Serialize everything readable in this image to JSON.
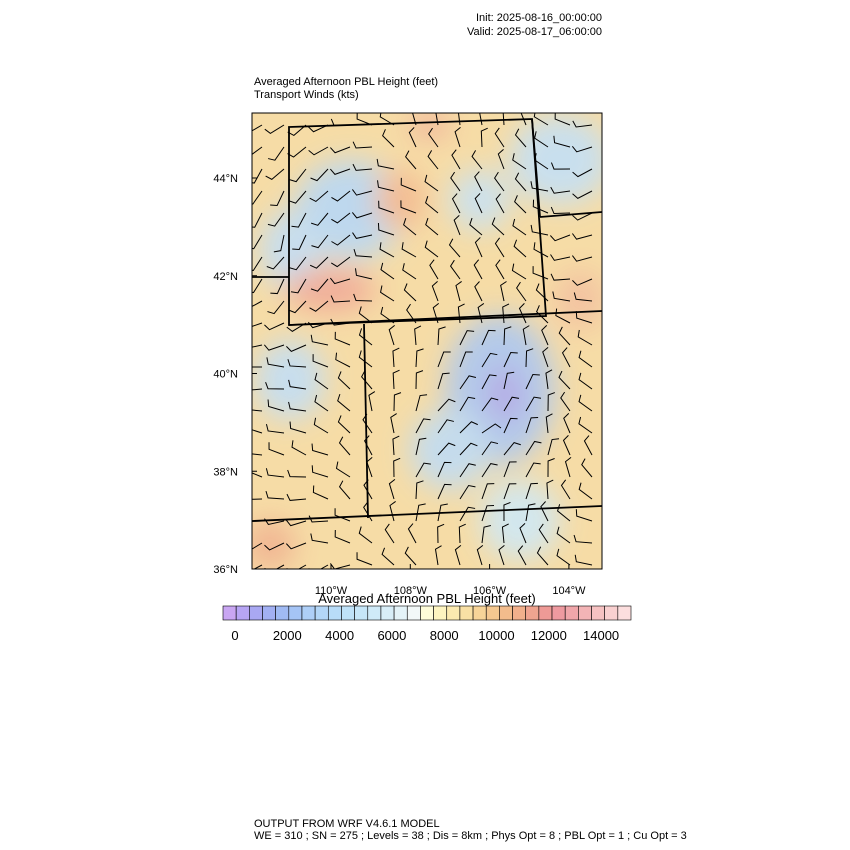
{
  "header": {
    "init": "Init: 2025-08-16_00:00:00",
    "valid": "Valid: 2025-08-17_06:00:00"
  },
  "map": {
    "title": "Averaged Afternoon PBL Height   (feet)",
    "subtitle": "Transport Winds   (kts)",
    "lat_labels": [
      "44°N",
      "42°N",
      "40°N",
      "38°N",
      "36°N"
    ],
    "lon_labels": [
      "110°W",
      "108°W",
      "106°W",
      "104°W"
    ]
  },
  "colorbar": {
    "title": "Averaged Afternoon PBL Height  (feet)",
    "labels": [
      "0",
      "2000",
      "4000",
      "6000",
      "8000",
      "10000",
      "12000",
      "14000"
    ],
    "colors": [
      "#c9a6f2",
      "#b7a5f4",
      "#a9a8f2",
      "#a2b0f3",
      "#a0baf3",
      "#a5c4f5",
      "#aecff7",
      "#b3d6f7",
      "#b8dcf8",
      "#bfe2f8",
      "#c6e6f8",
      "#cfeaf8",
      "#d8eef8",
      "#e4f3f8",
      "#f2f8f8",
      "#fefcd8",
      "#fdf4c0",
      "#fbeab0",
      "#f9e0a4",
      "#f7d498",
      "#f5c890",
      "#f3bc8c",
      "#f1b08c",
      "#efa490",
      "#ee9a96",
      "#ee9aa0",
      "#f0a6aa",
      "#f3b4b6",
      "#f6c2c2",
      "#f9d0d0",
      "#fcdede"
    ]
  },
  "footer": {
    "line1": "OUTPUT FROM WRF V4.6.1 MODEL",
    "line2": "WE = 310 ; SN = 275 ; Levels = 38 ; Dis = 8km ; Phys Opt = 8 ; PBL Opt = 1 ; Cu Opt = 3"
  }
}
